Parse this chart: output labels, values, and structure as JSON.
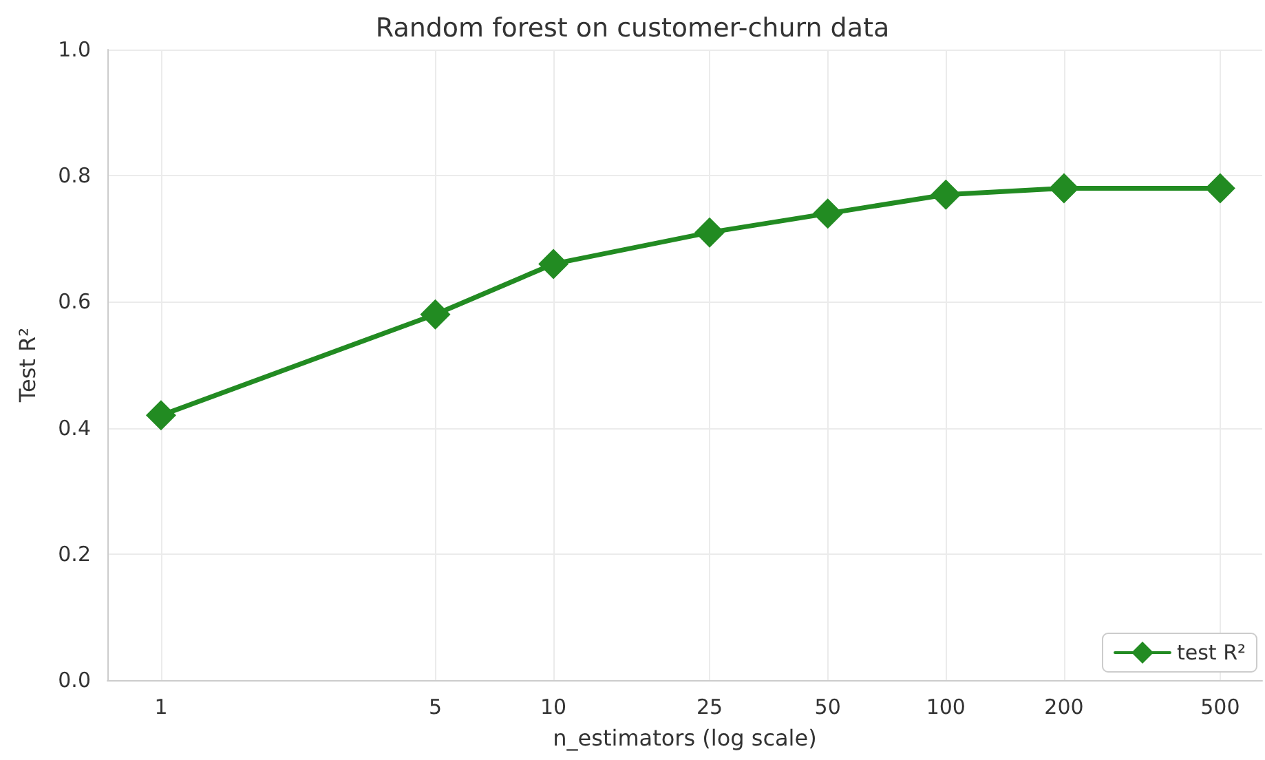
{
  "chart_data": {
    "type": "line",
    "title": "Random forest on customer-churn data",
    "xlabel": "n_estimators (log scale)",
    "ylabel": "Test R²",
    "x": [
      1,
      5,
      10,
      25,
      50,
      100,
      200,
      500
    ],
    "series": [
      {
        "name": "test R²",
        "color": "#228b22",
        "values": [
          0.42,
          0.58,
          0.66,
          0.71,
          0.74,
          0.77,
          0.78,
          0.78
        ]
      }
    ],
    "xlim": [
      0.73,
      640
    ],
    "xticks": [
      1,
      5,
      10,
      25,
      50,
      100,
      200,
      500
    ],
    "ylim": [
      0,
      1
    ],
    "yticks": [
      {
        "value": 0,
        "label": "0.0"
      },
      0.2,
      0.4,
      0.6,
      0.8,
      {
        "value": 1,
        "label": "1.0"
      }
    ],
    "log": "x",
    "grid": true,
    "legend": "bottom right",
    "marker": "diamond",
    "line_style": "solid"
  }
}
